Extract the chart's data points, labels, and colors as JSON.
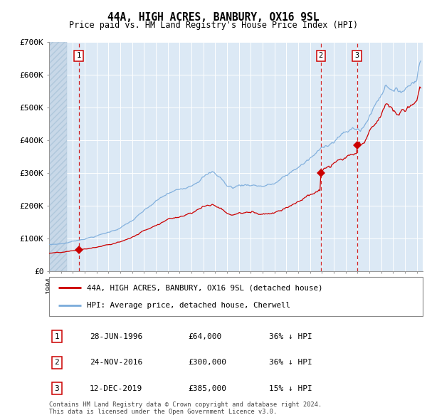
{
  "title": "44A, HIGH ACRES, BANBURY, OX16 9SL",
  "subtitle": "Price paid vs. HM Land Registry's House Price Index (HPI)",
  "ylim": [
    0,
    700000
  ],
  "yticks": [
    0,
    100000,
    200000,
    300000,
    400000,
    500000,
    600000,
    700000
  ],
  "ytick_labels": [
    "£0",
    "£100K",
    "£200K",
    "£300K",
    "£400K",
    "£500K",
    "£600K",
    "£700K"
  ],
  "xlim_start": 1994.0,
  "xlim_end": 2025.5,
  "background_plot": "#dce9f5",
  "background_hatch": "#c8d8e8",
  "sale_dates": [
    1996.49,
    2016.9,
    2019.95
  ],
  "sale_prices": [
    64000,
    300000,
    385000
  ],
  "sale_labels": [
    "1",
    "2",
    "3"
  ],
  "legend_line1": "44A, HIGH ACRES, BANBURY, OX16 9SL (detached house)",
  "legend_line2": "HPI: Average price, detached house, Cherwell",
  "table_rows": [
    [
      "1",
      "28-JUN-1996",
      "£64,000",
      "36% ↓ HPI"
    ],
    [
      "2",
      "24-NOV-2016",
      "£300,000",
      "36% ↓ HPI"
    ],
    [
      "3",
      "12-DEC-2019",
      "£385,000",
      "15% ↓ HPI"
    ]
  ],
  "footer": "Contains HM Land Registry data © Crown copyright and database right 2024.\nThis data is licensed under the Open Government Licence v3.0.",
  "hpi_color": "#7aabdb",
  "price_color": "#cc0000",
  "sale_marker_color": "#cc0000",
  "vline_color": "#cc0000",
  "hatch_end_year": 1995.5
}
